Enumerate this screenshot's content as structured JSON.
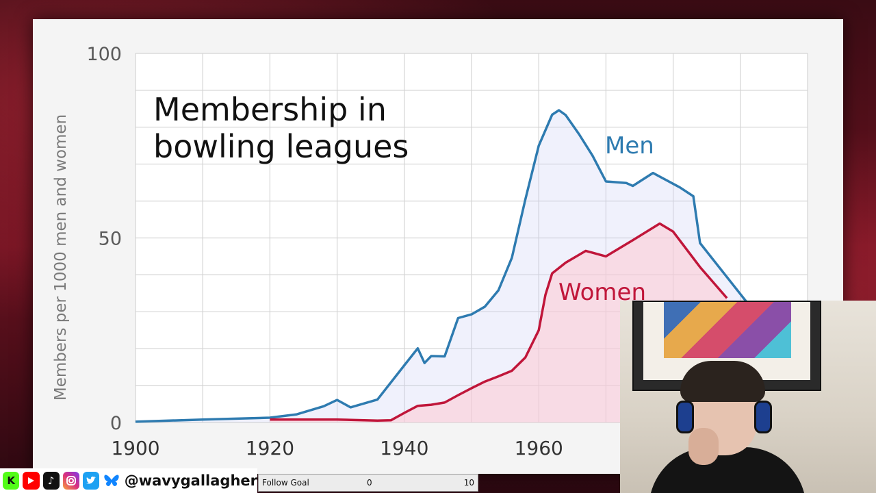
{
  "chart_data": {
    "type": "line",
    "title_lines": [
      "Membership in",
      "bowling leagues"
    ],
    "ylabel": "Members per 1000 men and women",
    "xlabel": "",
    "xlim": [
      1900,
      2000
    ],
    "ylim": [
      0,
      100
    ],
    "x_ticks": [
      "1900",
      "1920",
      "1940",
      "1960"
    ],
    "y_ticks": [
      "0",
      "50",
      "100"
    ],
    "grid": true,
    "colors": {
      "Men": "#2e7bb0",
      "Women": "#c0163a"
    },
    "series": [
      {
        "name": "Men",
        "x": [
          1900,
          1910,
          1920,
          1924,
          1928,
          1930,
          1932,
          1936,
          1940,
          1942,
          1943,
          1944,
          1946,
          1948,
          1950,
          1952,
          1954,
          1956,
          1958,
          1960,
          1962,
          1963,
          1964,
          1966,
          1968,
          1970,
          1973,
          1974,
          1977,
          1981,
          1983,
          1984,
          1991
        ],
        "y": [
          0.2,
          0.8,
          1.3,
          2.2,
          4.4,
          6.1,
          4.1,
          6.2,
          15.5,
          20.1,
          16.1,
          18.0,
          17.9,
          28.3,
          29.3,
          31.4,
          35.8,
          44.6,
          60.4,
          75.0,
          83.4,
          84.6,
          83.3,
          78.1,
          72.3,
          65.3,
          64.9,
          64.1,
          67.6,
          63.7,
          61.3,
          48.6,
          32.5
        ]
      },
      {
        "name": "Women",
        "x": [
          1920,
          1930,
          1936,
          1938,
          1940,
          1942,
          1944,
          1946,
          1948,
          1950,
          1952,
          1954,
          1956,
          1958,
          1960,
          1961,
          1962,
          1964,
          1967,
          1968,
          1970,
          1974,
          1978,
          1980,
          1984,
          1988
        ],
        "y": [
          0.8,
          0.8,
          0.5,
          0.6,
          2.6,
          4.5,
          4.8,
          5.4,
          7.4,
          9.3,
          11.1,
          12.5,
          14.0,
          17.6,
          25.0,
          34.6,
          40.4,
          43.3,
          46.5,
          46.0,
          45.0,
          49.4,
          53.9,
          51.7,
          42.1,
          33.7
        ]
      }
    ]
  },
  "overlay": {
    "handle": "@wavygallagher",
    "social_icons": [
      "kick-icon",
      "youtube-icon",
      "tiktok-icon",
      "instagram-icon",
      "twitter-icon",
      "bluesky-icon"
    ],
    "follow_goal": {
      "label": "Follow Goal",
      "current": "0",
      "target": "10",
      "progress": 0
    }
  }
}
